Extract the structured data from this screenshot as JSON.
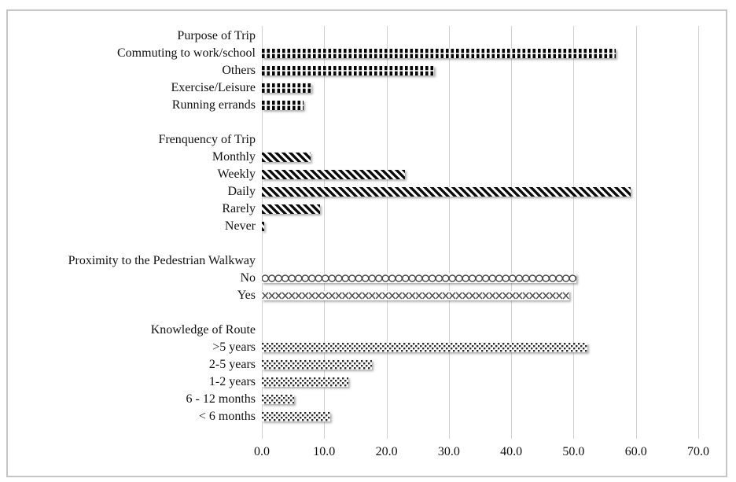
{
  "chart_data": {
    "type": "bar",
    "orientation": "horizontal",
    "title": "",
    "xlabel": "",
    "ylabel": "",
    "xlim": [
      0,
      70
    ],
    "x_tick_labels": [
      "0.0",
      "10.0",
      "20.0",
      "30.0",
      "40.0",
      "50.0",
      "60.0",
      "70.0"
    ],
    "x_tick_values": [
      0,
      10,
      20,
      30,
      40,
      50,
      60,
      70
    ],
    "grid": "vertical-gridlines-on",
    "legend": "none",
    "groups": [
      {
        "label": "Purpose of Trip",
        "pattern": "vertical-dashes",
        "items": [
          {
            "label": "Commuting to work/school",
            "value": 56.7
          },
          {
            "label": "Others",
            "value": 27.6
          },
          {
            "label": "Exercise/Leisure",
            "value": 8.0
          },
          {
            "label": "Running errands",
            "value": 6.7
          }
        ]
      },
      {
        "label": "Frenquency of Trip",
        "pattern": "diagonal-stripes",
        "items": [
          {
            "label": "Monthly",
            "value": 7.8
          },
          {
            "label": "Weekly",
            "value": 23.0
          },
          {
            "label": "Daily",
            "value": 59.2
          },
          {
            "label": "Rarely",
            "value": 9.3
          },
          {
            "label": "Never",
            "value": 0.4
          }
        ]
      },
      {
        "label": "Proximity to the Pedestrian Walkway",
        "pattern": "loops",
        "items": [
          {
            "label": "No",
            "value": 50.5
          },
          {
            "label": "Yes",
            "value": 49.3,
            "pattern": "zigzag"
          }
        ]
      },
      {
        "label": "Knowledge of Route",
        "pattern": "checker-dots",
        "items": [
          {
            "label": ">5 years",
            "value": 52.2
          },
          {
            "label": "2-5 years",
            "value": 17.7
          },
          {
            "label": "1-2 years",
            "value": 13.9
          },
          {
            "label": "6 - 12 months",
            "value": 5.2
          },
          {
            "label": "< 6 months",
            "value": 11.0
          }
        ]
      }
    ],
    "colors": {
      "bar_ink": "#000000",
      "pattern_gray": "#4a4a4a",
      "gridline": "#d2d2d2",
      "frame_border": "#c6c6c6",
      "background": "#ffffff",
      "text": "#111111"
    }
  }
}
